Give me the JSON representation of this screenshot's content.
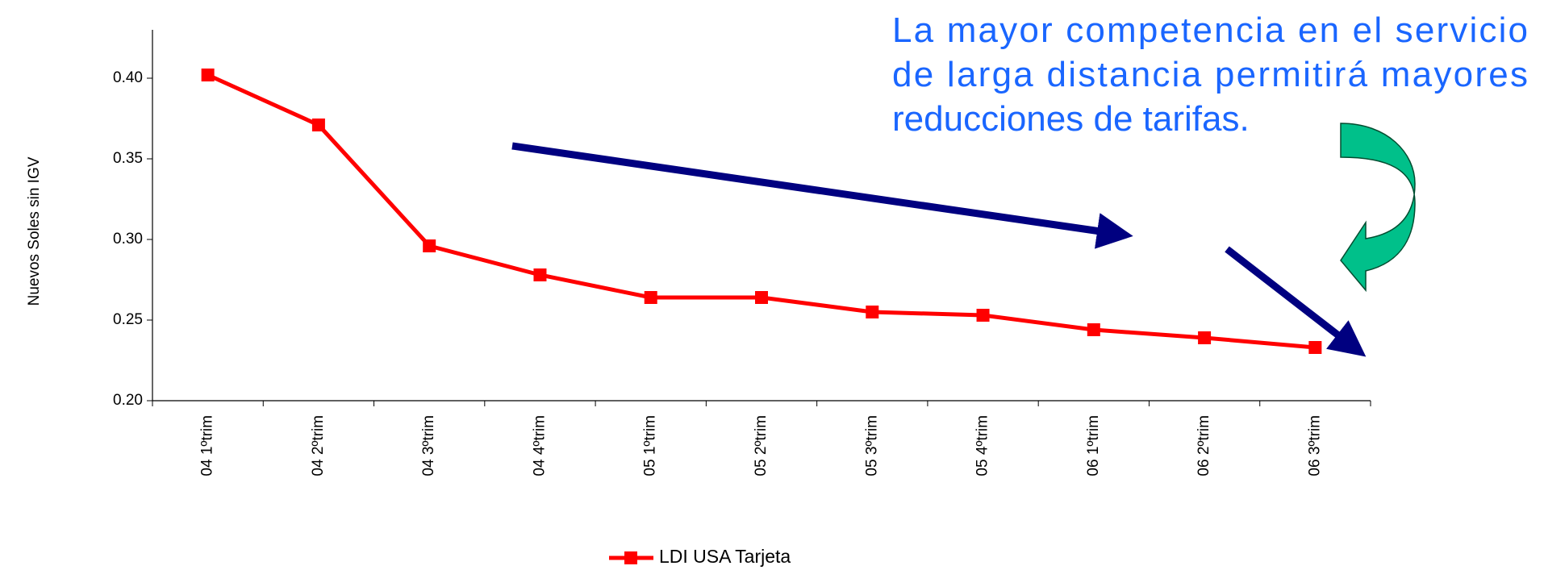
{
  "chart_data": {
    "type": "line",
    "y_label": "Nuevos Soles sin IGV",
    "annotation": [
      "La mayor competencia en el servicio",
      "de larga distancia permitirá mayores",
      "reducciones de tarifas."
    ],
    "categories": [
      "04 1ºtrim",
      "04 2ºtrim",
      "04 3ºtrim",
      "04 4ºtrim",
      "05 1ºtrim",
      "05 2ºtrim",
      "05 3ºtrim",
      "05 4ºtrim",
      "06 1ºtrim",
      "06 2ºtrim",
      "06 3ºtrim"
    ],
    "series": [
      {
        "name": "LDI USA Tarjeta",
        "color": "#ff0000",
        "values": [
          0.402,
          0.371,
          0.296,
          0.278,
          0.264,
          0.264,
          0.255,
          0.253,
          0.244,
          0.239,
          0.233
        ]
      }
    ],
    "ylim": [
      0.2,
      0.43
    ],
    "yticks": [
      {
        "value": 0.2,
        "label": "0.20"
      },
      {
        "value": 0.25,
        "label": "0.25"
      },
      {
        "value": 0.3,
        "label": "0.30"
      },
      {
        "value": 0.35,
        "label": "0.35"
      },
      {
        "value": 0.4,
        "label": "0.40"
      }
    ],
    "grid": false
  }
}
